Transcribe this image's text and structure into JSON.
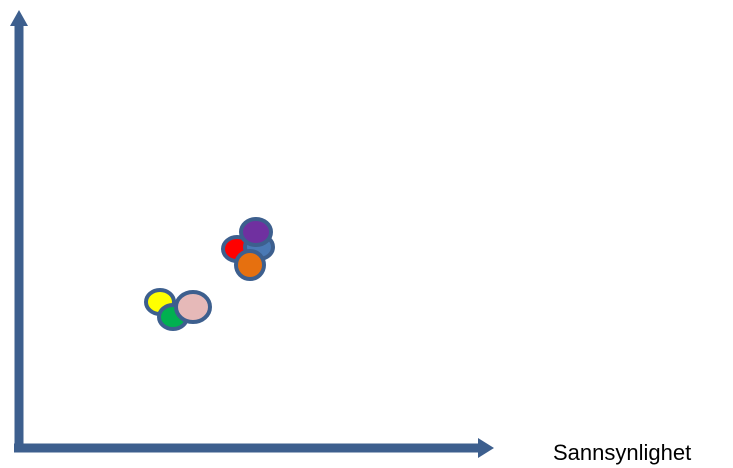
{
  "diagram": {
    "x_axis_label": "Sannsynlighet",
    "axis_color": "#3d5f8e",
    "marker_outline_color": "#3d5f8e",
    "markers": [
      {
        "name": "red",
        "color": "#ff0000"
      },
      {
        "name": "blue",
        "color": "#4a79b5"
      },
      {
        "name": "purple",
        "color": "#7030a0"
      },
      {
        "name": "orange",
        "color": "#e6700f"
      },
      {
        "name": "yellow",
        "color": "#ffff00"
      },
      {
        "name": "green",
        "color": "#00b050"
      },
      {
        "name": "pink",
        "color": "#e6b9b8"
      }
    ]
  }
}
